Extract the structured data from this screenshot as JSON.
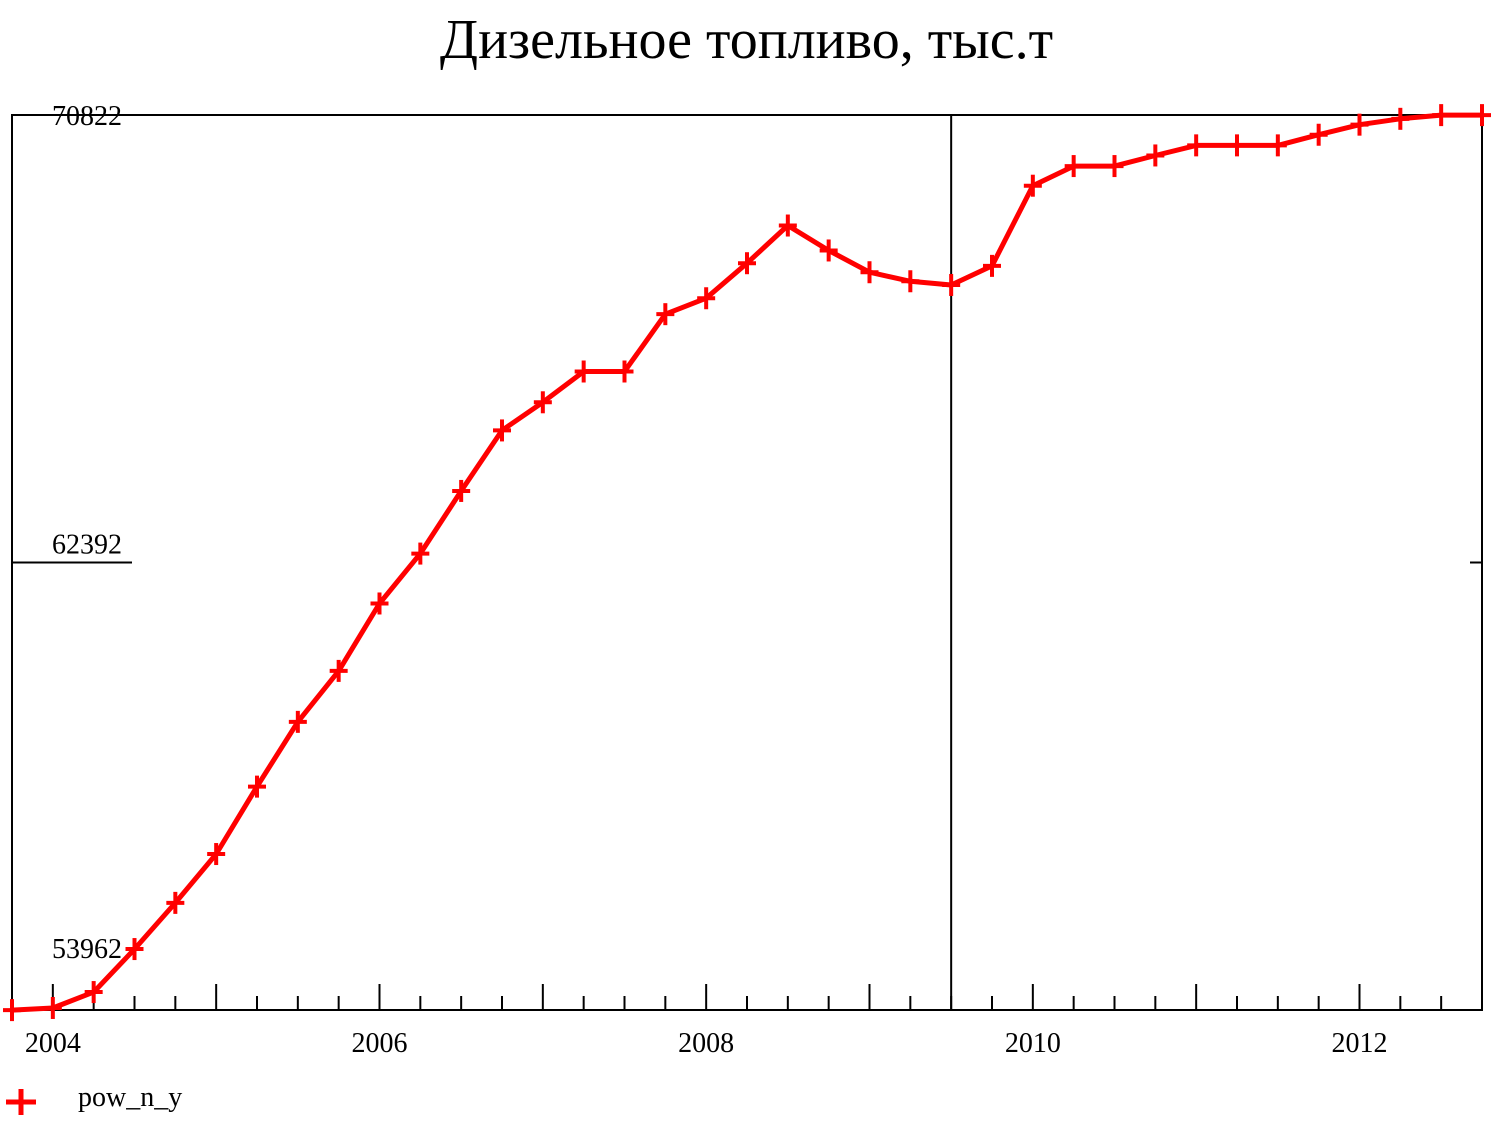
{
  "chart_data": {
    "type": "line",
    "title": "Дизельное топливо, тыс.т",
    "xlabel": "",
    "ylabel": "",
    "xlim": [
      2003.75,
      2012.75
    ],
    "ylim": [
      53962,
      70822
    ],
    "y_ticks": [
      53962,
      62392,
      70822
    ],
    "y_tick_labels": [
      "53962",
      "62392",
      "70822"
    ],
    "x_ticks": [
      2004,
      2006,
      2008,
      2010,
      2012
    ],
    "x_tick_labels": [
      "2004",
      "2006",
      "2008",
      "2010",
      "2012"
    ],
    "vertical_marker_x": 2009.5,
    "grid": false,
    "legend_position": "bottom-left",
    "series": [
      {
        "name": "pow_n_y",
        "color": "#ff0000",
        "marker": "plus",
        "x": [
          2003.75,
          2004.0,
          2004.25,
          2004.5,
          2004.75,
          2005.0,
          2005.25,
          2005.5,
          2005.75,
          2006.0,
          2006.25,
          2006.5,
          2006.75,
          2007.0,
          2007.25,
          2007.5,
          2007.75,
          2008.0,
          2008.25,
          2008.5,
          2008.75,
          2009.0,
          2009.25,
          2009.5,
          2009.75,
          2010.0,
          2010.25,
          2010.5,
          2010.75,
          2011.0,
          2011.25,
          2011.5,
          2011.75,
          2012.0,
          2012.25,
          2012.5,
          2012.75
        ],
        "values": [
          53960,
          54000,
          54300,
          55110,
          55980,
          56900,
          58170,
          59390,
          60350,
          61620,
          62560,
          63740,
          64880,
          65410,
          65990,
          65990,
          67070,
          67370,
          68030,
          68740,
          68270,
          67860,
          67690,
          67620,
          67980,
          69490,
          69860,
          69860,
          70060,
          70250,
          70250,
          70250,
          70450,
          70640,
          70750,
          70820,
          70820
        ]
      }
    ]
  }
}
